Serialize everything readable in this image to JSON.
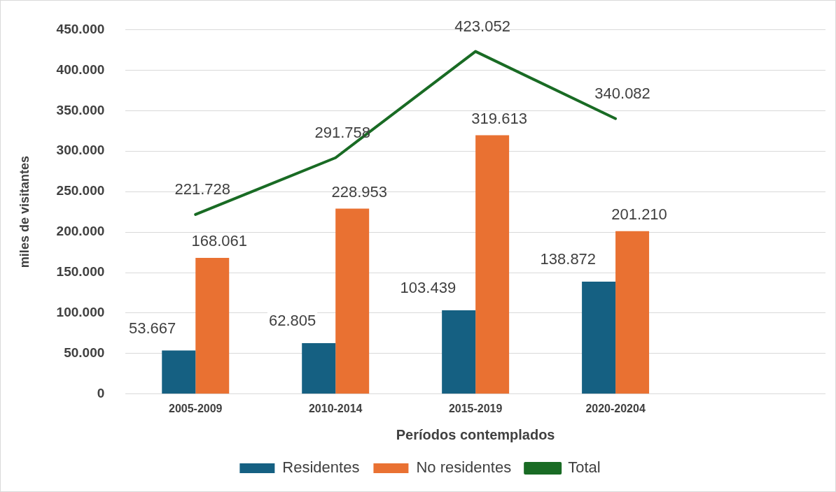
{
  "chart_data": {
    "type": "bar",
    "xlabel": "Períodos contemplados",
    "ylabel": "miles de visitantes",
    "categories": [
      "2005-2009",
      "2010-2014",
      "2015-2019",
      "2020-20204",
      null
    ],
    "series": [
      {
        "name": "Residentes",
        "color": "#156082",
        "values": [
          53667,
          62805,
          103439,
          138872,
          null
        ],
        "value_labels": [
          "53.667",
          "62.805",
          "103.439",
          "138.872",
          null
        ]
      },
      {
        "name": "No residentes",
        "color": "#e97132",
        "values": [
          168061,
          228953,
          319613,
          201210,
          null
        ],
        "value_labels": [
          "168.061",
          "228.953",
          "319.613",
          "201.210",
          null
        ]
      },
      {
        "name": "Total",
        "type": "line",
        "color": "#196b24",
        "marker": "none",
        "values": [
          221728,
          291758,
          423052,
          340082,
          null
        ],
        "value_labels": [
          "221.728",
          "291.758",
          "423.052",
          "340.082",
          null
        ]
      }
    ],
    "ylim": [
      0,
      450000
    ],
    "yticks": [
      {
        "value": 0,
        "label": "0"
      },
      {
        "value": 50000,
        "label": "50.000"
      },
      {
        "value": 100000,
        "label": "100.000"
      },
      {
        "value": 150000,
        "label": "150.000"
      },
      {
        "value": 200000,
        "label": "200.000"
      },
      {
        "value": 250000,
        "label": "250.000"
      },
      {
        "value": 300000,
        "label": "300.000"
      },
      {
        "value": 350000,
        "label": "350.000"
      },
      {
        "value": 400000,
        "label": "400.000"
      },
      {
        "value": 450000,
        "label": "450.000"
      }
    ],
    "grid": "y",
    "legend": "bottom"
  }
}
